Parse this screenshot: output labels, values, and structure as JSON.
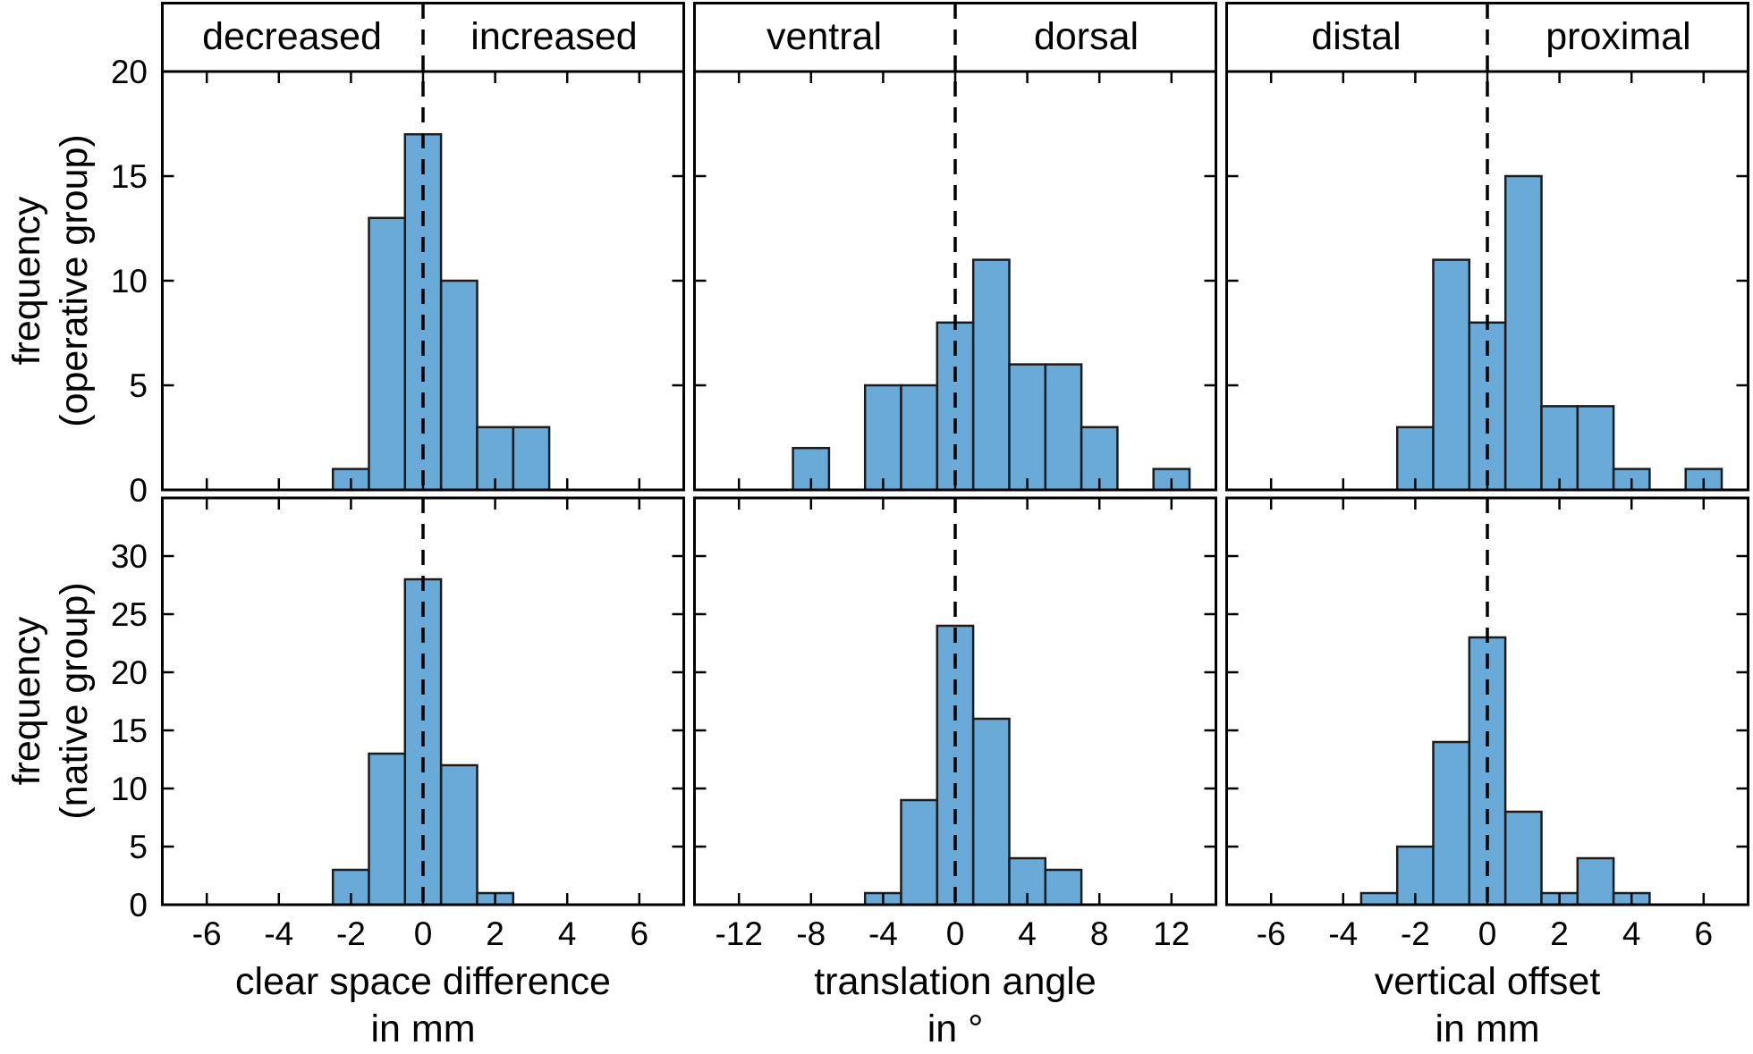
{
  "figure": {
    "background": "#ffffff",
    "bar_fill": "#69aad8",
    "bar_edge": "#1c1c1c",
    "axis_color": "#000000",
    "zero_line_color": "#000000"
  },
  "chart_data": {
    "type": "bar",
    "subtype": "histogram_small_multiples",
    "grid": "2 rows (patient groups) x 3 columns (measurements), dashed vertical reference line at 0 in every panel",
    "legend": "none",
    "rows": [
      {
        "id": "operative",
        "ylabel_line1": "frequency",
        "ylabel_line2": "(operative group)",
        "ylim": [
          0,
          20
        ],
        "yticks": [
          0,
          5,
          10,
          15,
          20
        ]
      },
      {
        "id": "native",
        "ylabel_line1": "frequency",
        "ylabel_line2": "(native group)",
        "ylim": [
          0,
          35
        ],
        "yticks": [
          0,
          5,
          10,
          15,
          20,
          25,
          30
        ]
      }
    ],
    "columns": [
      {
        "id": "clear-space",
        "header_left": "decreased",
        "header_right": "increased",
        "xlabel_line1": "clear space difference",
        "xlabel_line2": "in mm",
        "xlim": [
          -7.27,
          7.27
        ],
        "xticks": [
          -6,
          -4,
          -2,
          0,
          2,
          4,
          6
        ],
        "bin_width": 1,
        "histograms": {
          "operative": {
            "bin_centers": [
              -2,
              -1,
              0,
              1,
              2,
              3
            ],
            "frequencies": [
              1,
              13,
              17,
              10,
              3,
              3
            ]
          },
          "native": {
            "bin_centers": [
              -2,
              -1,
              0,
              1,
              2
            ],
            "frequencies": [
              3,
              13,
              28,
              12,
              1
            ]
          }
        }
      },
      {
        "id": "translation-angle",
        "header_left": "ventral",
        "header_right": "dorsal",
        "xlabel_line1": "translation angle",
        "xlabel_line2": "in °",
        "xlim": [
          -14.54,
          14.54
        ],
        "xticks": [
          -12,
          -8,
          -4,
          0,
          4,
          8,
          12
        ],
        "bin_width": 2,
        "histograms": {
          "operative": {
            "bin_centers": [
              -8,
              -4,
              -2,
              0,
              2,
              4,
              6,
              8,
              12
            ],
            "frequencies": [
              2,
              5,
              5,
              8,
              11,
              6,
              6,
              3,
              1
            ]
          },
          "native": {
            "bin_centers": [
              -4,
              -2,
              0,
              2,
              4,
              6
            ],
            "frequencies": [
              1,
              9,
              24,
              16,
              4,
              3
            ]
          }
        }
      },
      {
        "id": "vertical-offset",
        "header_left": "distal",
        "header_right": "proximal",
        "xlabel_line1": "vertical offset",
        "xlabel_line2": "in mm",
        "xlim": [
          -7.27,
          7.27
        ],
        "xticks": [
          -6,
          -4,
          -2,
          0,
          2,
          4,
          6
        ],
        "bin_width": 1,
        "histograms": {
          "operative": {
            "bin_centers": [
              -2,
              -1,
              0,
              1,
              2,
              3,
              4,
              6
            ],
            "frequencies": [
              3,
              11,
              8,
              15,
              4,
              4,
              1,
              1
            ]
          },
          "native": {
            "bin_centers": [
              -3,
              -2,
              -1,
              0,
              1,
              2,
              3,
              4
            ],
            "frequencies": [
              1,
              5,
              14,
              23,
              8,
              1,
              4,
              1
            ]
          }
        }
      }
    ]
  }
}
